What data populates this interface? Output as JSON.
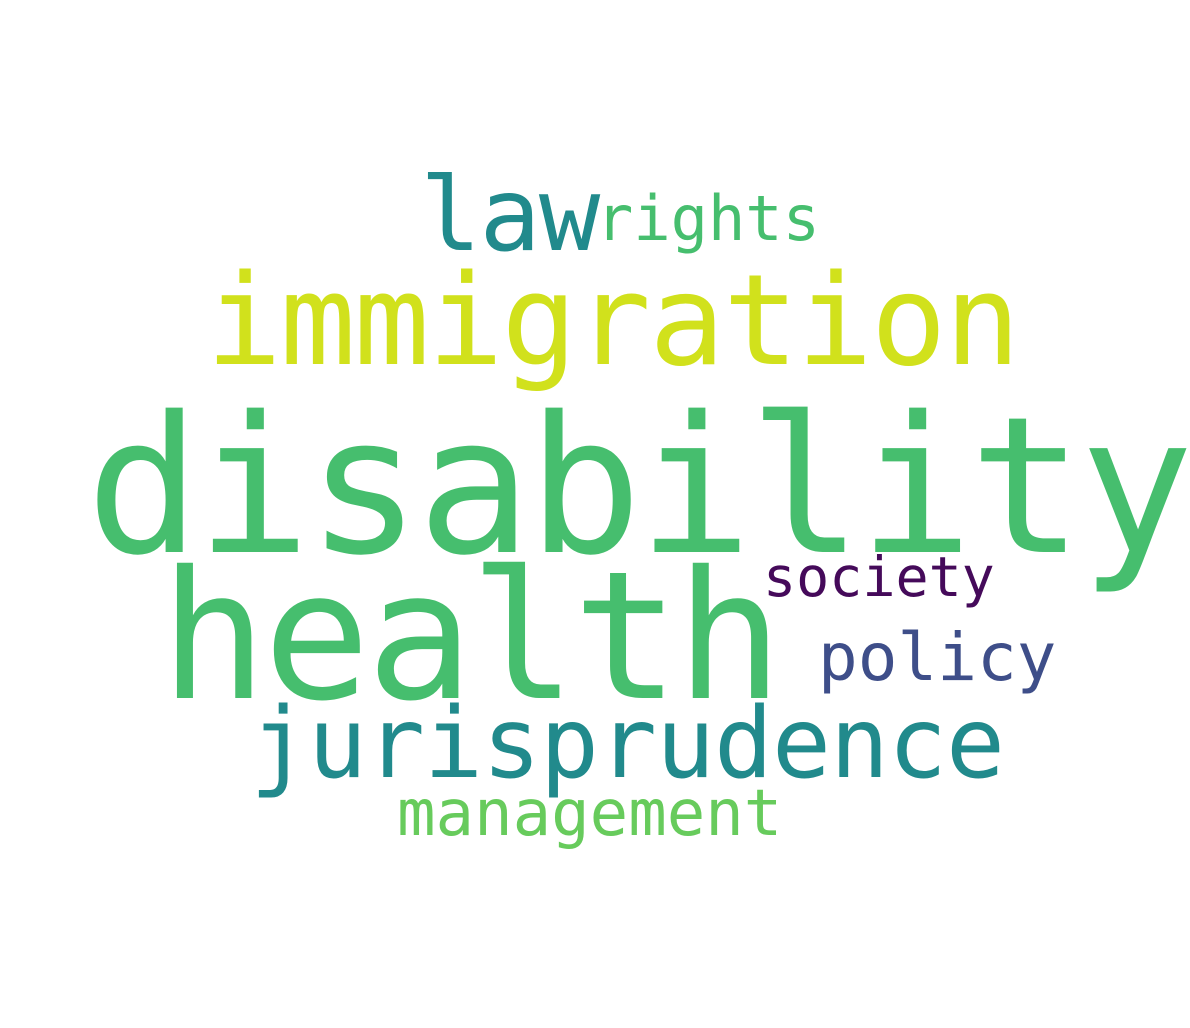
{
  "word_cloud": {
    "background": "#ffffff",
    "words": [
      {
        "key": "disability",
        "text": "disability",
        "color": "#46be6e"
      },
      {
        "key": "health",
        "text": "health",
        "color": "#46be6e"
      },
      {
        "key": "immigration",
        "text": "immigration",
        "color": "#d1e11c"
      },
      {
        "key": "jurisprudence",
        "text": "jurisprudence",
        "color": "#218a8c"
      },
      {
        "key": "law",
        "text": "law",
        "color": "#218a8c"
      },
      {
        "key": "rights",
        "text": "rights",
        "color": "#46be6e"
      },
      {
        "key": "society",
        "text": "society",
        "color": "#450a5a"
      },
      {
        "key": "policy",
        "text": "policy",
        "color": "#3e4e89"
      },
      {
        "key": "management",
        "text": "management",
        "color": "#67cb5c"
      }
    ]
  }
}
